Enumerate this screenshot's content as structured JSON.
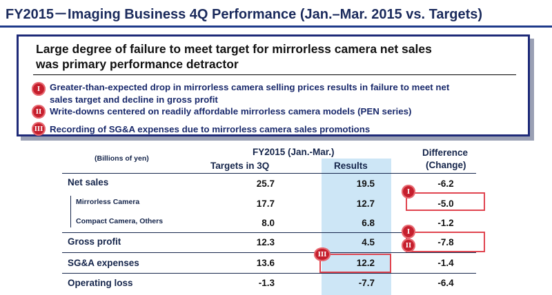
{
  "header": {
    "title": "FY2015－Imaging Business 4Q Performance (Jan.–Mar. 2015 vs. Targets)"
  },
  "summary": {
    "headline_line1": "Large degree of failure to meet target for mirrorless camera net sales",
    "headline_line2": "was primary performance detractor",
    "points": [
      {
        "badge": "I",
        "line1": "Greater-than-expected drop in mirrorless camera selling prices results in failure to meet net",
        "line2": "sales target and decline in gross profit"
      },
      {
        "badge": "II",
        "line1": "Write-downs centered on readily affordable mirrorless camera models (PEN series)"
      },
      {
        "badge": "III",
        "line1": "Recording of SG&A expenses due to mirrorless camera sales promotions"
      }
    ]
  },
  "table": {
    "units": "(Billions of yen)",
    "period": "FY2015 (Jan.-Mar.)",
    "col_targets": "Targets in 3Q",
    "col_results": "Results",
    "col_diff_line1": "Difference",
    "col_diff_line2": "(Change)",
    "rows": [
      {
        "label": "Net sales",
        "targets": "25.7",
        "results": "19.5",
        "diff": "-6.2"
      },
      {
        "label": "Mirrorless Camera",
        "targets": "17.7",
        "results": "12.7",
        "diff": "-5.0"
      },
      {
        "label": "Compact Camera, Others",
        "targets": "8.0",
        "results": "6.8",
        "diff": "-1.2"
      },
      {
        "label": "Gross profit",
        "targets": "12.3",
        "results": "4.5",
        "diff": "-7.8"
      },
      {
        "label": "SG&A expenses",
        "targets": "13.6",
        "results": "12.2",
        "diff": "-1.4"
      },
      {
        "label": "Operating loss",
        "targets": "-1.3",
        "results": "-7.7",
        "diff": "-6.4"
      }
    ],
    "callouts": {
      "mirrorless": "I",
      "gross_a": "I",
      "gross_b": "II",
      "sga": "III"
    }
  },
  "colors": {
    "accent": "#1e3a8a",
    "badge": "#c51f2d",
    "highlight": "#cde6f6",
    "callout_box": "#e0434e"
  }
}
